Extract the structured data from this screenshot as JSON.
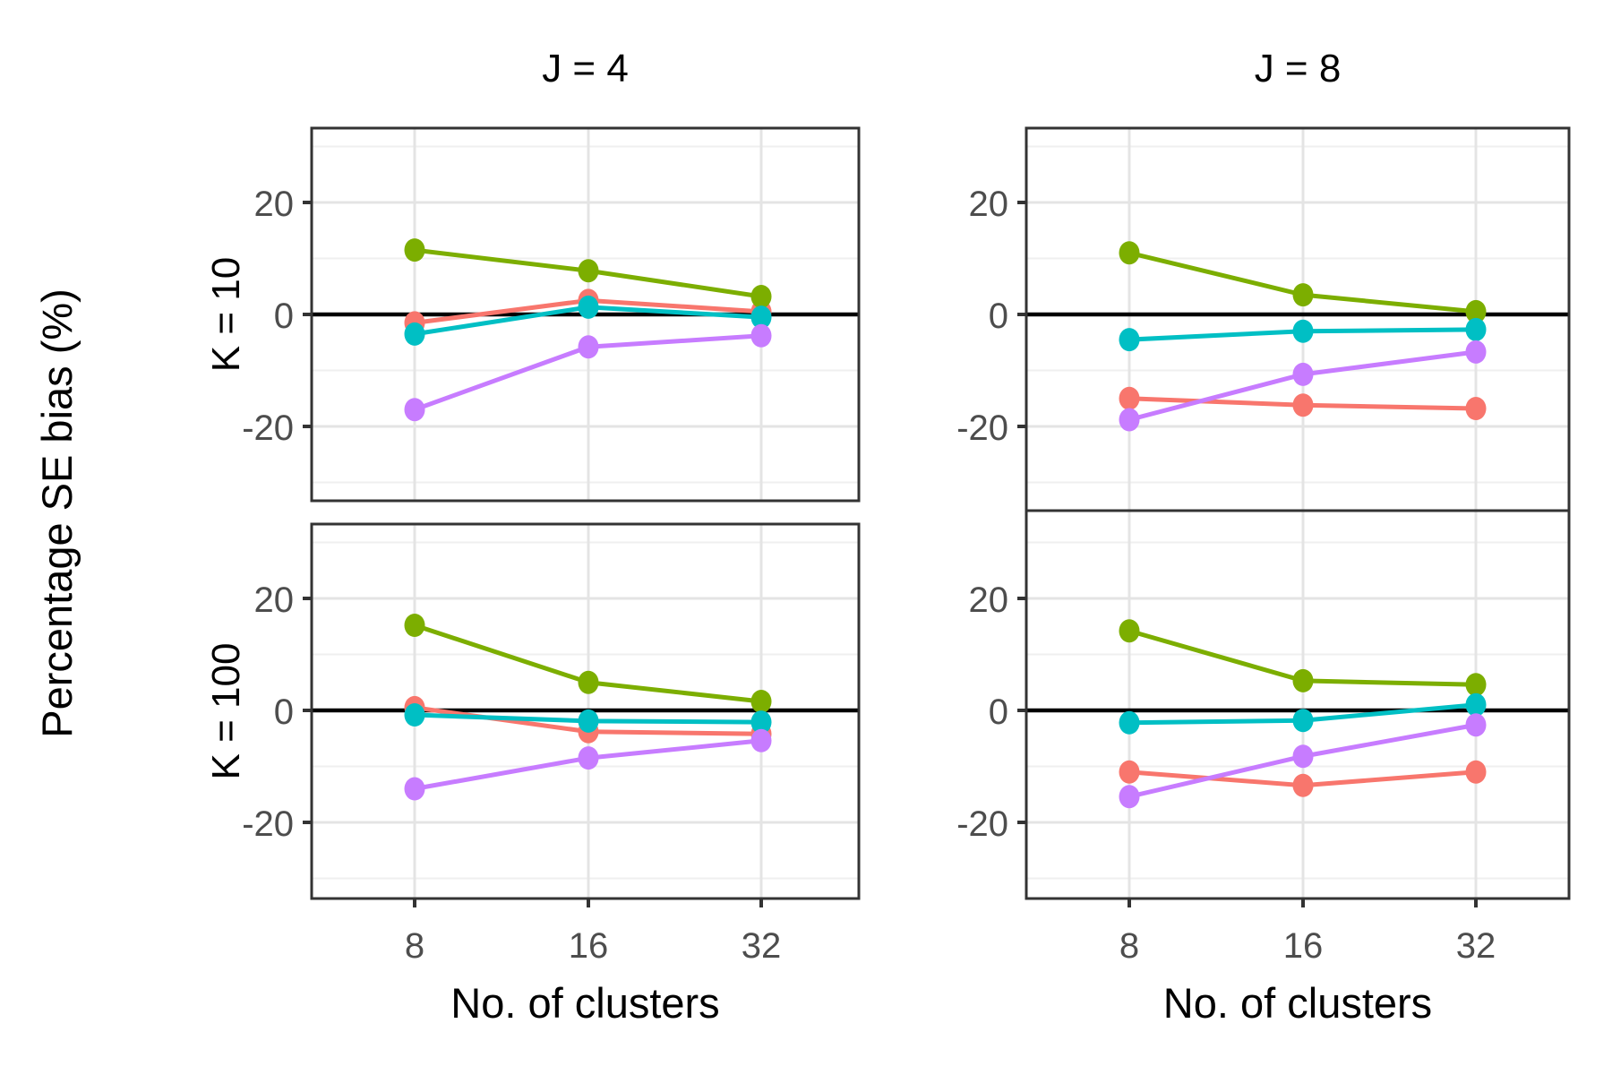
{
  "figure": {
    "y_axis_title": "Percentage SE bias (%)",
    "x_axis_title": "No. of clusters",
    "col_facets": [
      "J = 4",
      "J = 8"
    ],
    "row_facets": [
      "K = 10",
      "K = 100"
    ],
    "y_tick_labels": [
      "20",
      "0",
      "-20"
    ],
    "x_tick_labels": [
      "8",
      "16",
      "32"
    ],
    "colors": {
      "salmon": "#F8766D",
      "olive_green": "#7CAE00",
      "teal": "#00BFC4",
      "purple": "#C77CFF",
      "zero_line": "#000000",
      "panel_border": "#333333",
      "tick_mark": "#333333",
      "tick_label": "#4D4D4D",
      "grid_major": "#E4E4E4",
      "grid_minor": "#EFEFEF",
      "background": "#FFFFFF"
    }
  },
  "chart_data": {
    "type": "line",
    "title": "",
    "xlabel": "No. of clusters",
    "ylabel": "Percentage SE bias (%)",
    "x": [
      8,
      16,
      32
    ],
    "x_scale": "log2",
    "ylim": [
      -33.3,
      33.3
    ],
    "y_major_ticks": [
      20,
      0,
      -20
    ],
    "y_minor_gridlines": [
      30,
      10,
      -10,
      -30
    ],
    "reference_line_y": 0,
    "grid": true,
    "legend_position": "none",
    "facet_layout": "2 rows (K = 10, K = 100) x 2 cols (J = 4, J = 8)",
    "panels": [
      {
        "col_facet": "J = 4",
        "row_facet": "K = 10",
        "series": [
          {
            "name": "salmon",
            "color": "#F8766D",
            "values": [
              -1.5,
              2.5,
              0.5
            ]
          },
          {
            "name": "olive-green",
            "color": "#7CAE00",
            "values": [
              11.5,
              7.8,
              3.2
            ]
          },
          {
            "name": "teal",
            "color": "#00BFC4",
            "values": [
              -3.5,
              1.3,
              -0.5
            ]
          },
          {
            "name": "purple",
            "color": "#C77CFF",
            "values": [
              -17,
              -5.8,
              -3.8
            ]
          }
        ]
      },
      {
        "col_facet": "J = 8",
        "row_facet": "K = 10",
        "series": [
          {
            "name": "salmon",
            "color": "#F8766D",
            "values": [
              -15,
              -16.2,
              -16.8
            ]
          },
          {
            "name": "olive-green",
            "color": "#7CAE00",
            "values": [
              11,
              3.5,
              0.5
            ]
          },
          {
            "name": "teal",
            "color": "#00BFC4",
            "values": [
              -4.5,
              -3,
              -2.7
            ]
          },
          {
            "name": "purple",
            "color": "#C77CFF",
            "values": [
              -18.8,
              -10.7,
              -6.7
            ]
          }
        ]
      },
      {
        "col_facet": "J = 4",
        "row_facet": "K = 100",
        "series": [
          {
            "name": "salmon",
            "color": "#F8766D",
            "values": [
              0.5,
              -3.8,
              -4.2
            ]
          },
          {
            "name": "olive-green",
            "color": "#7CAE00",
            "values": [
              15.2,
              5,
              1.6
            ]
          },
          {
            "name": "teal",
            "color": "#00BFC4",
            "values": [
              -0.8,
              -1.9,
              -2.1
            ]
          },
          {
            "name": "purple",
            "color": "#C77CFF",
            "values": [
              -14,
              -8.5,
              -5.4
            ]
          }
        ]
      },
      {
        "col_facet": "J = 8",
        "row_facet": "K = 100",
        "series": [
          {
            "name": "salmon",
            "color": "#F8766D",
            "values": [
              -11,
              -13.4,
              -11
            ]
          },
          {
            "name": "olive-green",
            "color": "#7CAE00",
            "values": [
              14.2,
              5.3,
              4.6
            ]
          },
          {
            "name": "teal",
            "color": "#00BFC4",
            "values": [
              -2.2,
              -1.8,
              1
            ]
          },
          {
            "name": "purple",
            "color": "#C77CFF",
            "values": [
              -15.4,
              -8.2,
              -2.6
            ]
          }
        ]
      }
    ]
  }
}
